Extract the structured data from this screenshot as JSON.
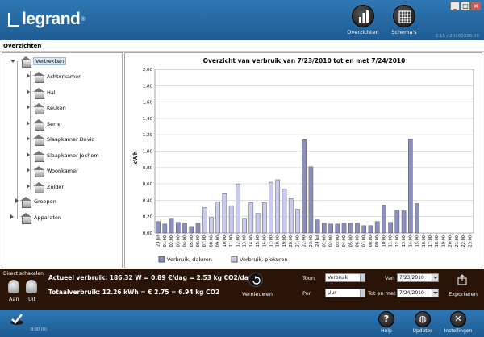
{
  "header": {
    "logo_text": "legrand",
    "logo_mark": "®",
    "nav": [
      {
        "label": "Overzichten",
        "icon": "bar-chart-icon"
      },
      {
        "label": "Schema's",
        "icon": "calendar-icon"
      }
    ],
    "window_controls": [
      "_",
      "□",
      "×"
    ],
    "version": "2.15 / 20100226.00"
  },
  "breadcrumb": "Overzichten",
  "tree": {
    "root": "Vertrekken",
    "rooms": [
      "Achterkamer",
      "Hal",
      "Keuken",
      "Serre",
      "Slaapkamer David",
      "Slaapkamer Jochem",
      "Woonkamer",
      "Zolder"
    ],
    "groups": "Groepen",
    "devices": "Apparaten"
  },
  "chart_data": {
    "type": "bar",
    "title": "Overzicht van verbruik van 7/23/2010 tot en met 7/24/2010",
    "ylabel": "kWh",
    "ylim": [
      0,
      2.0
    ],
    "yticks": [
      "0,00",
      "0,20",
      "0,40",
      "0,60",
      "0,80",
      "1,00",
      "1,20",
      "1,40",
      "1,60",
      "1,80",
      "2,00"
    ],
    "categories": [
      "23 Jul",
      "01:00",
      "02:00",
      "03:00",
      "04:00",
      "05:00",
      "06:00",
      "07:00",
      "08:00",
      "09:00",
      "10:00",
      "11:00",
      "12:00",
      "13:00",
      "14:00",
      "15:00",
      "16:00",
      "17:00",
      "18:00",
      "19:00",
      "20:00",
      "21:00",
      "22:00",
      "23:00",
      "24 Jul",
      "01:00",
      "02:00",
      "03:00",
      "04:00",
      "05:00",
      "06:00",
      "07:00",
      "08:00",
      "09:00",
      "10:00",
      "11:00",
      "12:00",
      "13:00",
      "14:00",
      "15:00",
      "16:00",
      "17:00",
      "18:00",
      "19:00",
      "20:00",
      "21:00",
      "22:00",
      "23:00"
    ],
    "series": [
      {
        "name": "Verbruik, daluren",
        "color": "#8a8fc0",
        "values": [
          0.14,
          0.11,
          0.17,
          0.13,
          0.12,
          0.08,
          0.12,
          0,
          0,
          0,
          0,
          0,
          0,
          0,
          0,
          0,
          0,
          0,
          0,
          0,
          0,
          0,
          1.14,
          0.81,
          0.16,
          0.12,
          0.11,
          0.11,
          0.12,
          0.12,
          0.12,
          0.09,
          0.09,
          0.14,
          0.34,
          0.13,
          0.28,
          0.27,
          1.15,
          0.36,
          0,
          0,
          0,
          0,
          0,
          0,
          0,
          0
        ]
      },
      {
        "name": "Verbruik, piekuren",
        "color": "#c8cbee",
        "values": [
          0,
          0,
          0,
          0,
          0,
          0,
          0,
          0.31,
          0.19,
          0.38,
          0.48,
          0.33,
          0.6,
          0.17,
          0.37,
          0.24,
          0.37,
          0.62,
          0.65,
          0.54,
          0.42,
          0.29,
          0,
          0,
          0,
          0,
          0,
          0,
          0,
          0,
          0,
          0,
          0,
          0,
          0,
          0,
          0,
          0,
          0,
          0,
          0,
          0,
          0,
          0,
          0,
          0,
          0,
          0
        ]
      }
    ],
    "grid": true,
    "legend": "bottom"
  },
  "controls": {
    "section_label": "Direct schakelen",
    "on_label": "Aan",
    "off_label": "Uit",
    "current_usage": "Actueel verbruik: 186.32 W = 0.89 €/dag = 2.53 kg CO2/dag",
    "total_usage": "Totaalverbruik: 12.26 kWh = € 2.75 = 6.94 kg CO2",
    "refresh_label": "Vernieuwen",
    "show_label": "Toon",
    "show_value": "Verbruik",
    "per_label": "Per",
    "per_value": "Uur",
    "from_label": "Van",
    "from_value": "7/23/2010",
    "to_label": "Tot en met",
    "to_value": "7/24/2010",
    "export_label": "Exporteren"
  },
  "footer": {
    "status": "0:00 (0)",
    "buttons": [
      {
        "label": "Help",
        "icon": "help-icon",
        "glyph": "?"
      },
      {
        "label": "Updates",
        "icon": "globe-icon",
        "glyph": "◍"
      },
      {
        "label": "Instellingen",
        "icon": "tools-icon",
        "glyph": "✕"
      }
    ]
  }
}
